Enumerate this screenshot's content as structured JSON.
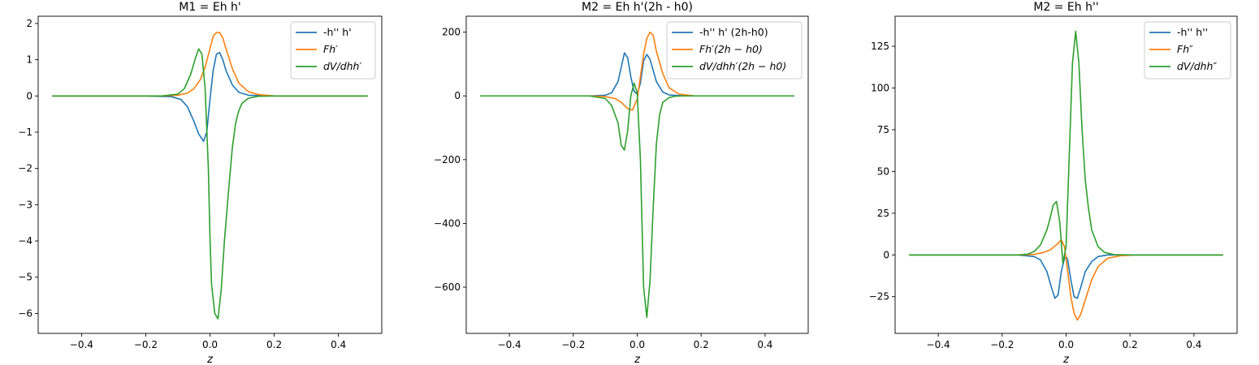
{
  "chart_data": [
    {
      "type": "line",
      "title": "M1 = Eh h'",
      "xlabel": "z",
      "ylabel": "",
      "xlim": [
        -0.535,
        0.535
      ],
      "ylim": [
        -6.55,
        2.2
      ],
      "xticks": [
        -0.4,
        -0.2,
        0.0,
        0.2,
        0.4
      ],
      "xtick_labels": [
        "−0.4",
        "−0.2",
        "0.0",
        "0.2",
        "0.4"
      ],
      "yticks": [
        2,
        1,
        0,
        -1,
        -2,
        -3,
        -4,
        -5,
        -6
      ],
      "ytick_labels": [
        "2",
        "1",
        "0",
        "−1",
        "−2",
        "−3",
        "−4",
        "−5",
        "−6"
      ],
      "legend_position": "upper right",
      "series": [
        {
          "name": "-h'' h'",
          "color": "#1f77b4",
          "x": [
            -0.49,
            -0.2,
            -0.12,
            -0.09,
            -0.07,
            -0.05,
            -0.035,
            -0.02,
            -0.01,
            0.0,
            0.01,
            0.02,
            0.03,
            0.04,
            0.05,
            0.07,
            0.09,
            0.12,
            0.2,
            0.49
          ],
          "y": [
            0,
            0,
            -0.02,
            -0.1,
            -0.3,
            -0.7,
            -1.05,
            -1.25,
            -1.0,
            -0.1,
            0.7,
            1.15,
            1.2,
            1.0,
            0.7,
            0.3,
            0.1,
            0.02,
            0,
            0
          ]
        },
        {
          "name": "Fh′",
          "color": "#ff7f0e",
          "x": [
            -0.49,
            -0.15,
            -0.1,
            -0.07,
            -0.05,
            -0.03,
            -0.015,
            0.0,
            0.01,
            0.02,
            0.03,
            0.04,
            0.05,
            0.07,
            0.09,
            0.12,
            0.15,
            0.2,
            0.49
          ],
          "y": [
            0,
            0,
            0.02,
            0.08,
            0.2,
            0.45,
            0.8,
            1.3,
            1.65,
            1.75,
            1.75,
            1.6,
            1.3,
            0.75,
            0.35,
            0.12,
            0.04,
            0,
            0
          ]
        },
        {
          "name": "dV/dhh′",
          "color": "#2ca02c",
          "x": [
            -0.49,
            -0.15,
            -0.1,
            -0.08,
            -0.06,
            -0.045,
            -0.035,
            -0.025,
            -0.015,
            -0.005,
            0.0,
            0.005,
            0.015,
            0.025,
            0.035,
            0.045,
            0.06,
            0.07,
            0.08,
            0.09,
            0.1,
            0.12,
            0.15,
            0.2,
            0.49
          ],
          "y": [
            0,
            0,
            0.05,
            0.2,
            0.6,
            1.05,
            1.3,
            1.15,
            0.2,
            -2.0,
            -3.9,
            -5.2,
            -6.0,
            -6.15,
            -5.35,
            -4.0,
            -2.4,
            -1.4,
            -0.75,
            -0.4,
            -0.2,
            -0.06,
            -0.01,
            0,
            0
          ]
        }
      ]
    },
    {
      "type": "line",
      "title": "M2 = Eh h'(2h - h0)",
      "xlabel": "z",
      "ylabel": "",
      "xlim": [
        -0.535,
        0.535
      ],
      "ylim": [
        -745,
        250
      ],
      "xticks": [
        -0.4,
        -0.2,
        0.0,
        0.2,
        0.4
      ],
      "xtick_labels": [
        "−0.4",
        "−0.2",
        "0.0",
        "0.2",
        "0.4"
      ],
      "yticks": [
        200,
        0,
        -200,
        -400,
        -600
      ],
      "ytick_labels": [
        "200",
        "0",
        "−200",
        "−400",
        "−600"
      ],
      "legend_position": "upper right",
      "series": [
        {
          "name": "-h'' h' (2h-h0)",
          "color": "#1f77b4",
          "x": [
            -0.49,
            -0.15,
            -0.1,
            -0.08,
            -0.06,
            -0.05,
            -0.04,
            -0.03,
            -0.02,
            -0.01,
            0.0,
            0.01,
            0.02,
            0.03,
            0.04,
            0.05,
            0.06,
            0.08,
            0.1,
            0.15,
            0.49
          ],
          "y": [
            0,
            0,
            2,
            10,
            45,
            90,
            135,
            120,
            60,
            15,
            5,
            40,
            110,
            130,
            115,
            80,
            45,
            12,
            3,
            0,
            0
          ]
        },
        {
          "name": "Fh′(2h − h0)",
          "color": "#ff7f0e",
          "x": [
            -0.49,
            -0.15,
            -0.1,
            -0.07,
            -0.05,
            -0.03,
            -0.015,
            0.0,
            0.01,
            0.02,
            0.03,
            0.04,
            0.05,
            0.06,
            0.08,
            0.1,
            0.13,
            0.18,
            0.49
          ],
          "y": [
            0,
            0,
            -2,
            -8,
            -20,
            -40,
            -45,
            -10,
            60,
            130,
            180,
            200,
            190,
            140,
            70,
            25,
            6,
            0,
            0
          ]
        },
        {
          "name": "dV/dhh′(2h − h0)",
          "color": "#2ca02c",
          "x": [
            -0.49,
            -0.15,
            -0.1,
            -0.08,
            -0.06,
            -0.05,
            -0.04,
            -0.03,
            -0.02,
            -0.01,
            0.0,
            0.01,
            0.02,
            0.03,
            0.04,
            0.05,
            0.06,
            0.07,
            0.08,
            0.1,
            0.12,
            0.15,
            0.2,
            0.49
          ],
          "y": [
            0,
            0,
            -8,
            -30,
            -85,
            -155,
            -170,
            -110,
            0,
            40,
            10,
            -200,
            -600,
            -695,
            -580,
            -350,
            -150,
            -60,
            -20,
            -5,
            -1,
            0,
            0,
            0
          ]
        }
      ]
    },
    {
      "type": "line",
      "title": "M2 = Eh h''",
      "xlabel": "z",
      "ylabel": "",
      "xlim": [
        -0.535,
        0.535
      ],
      "ylim": [
        -47,
        143
      ],
      "xticks": [
        -0.4,
        -0.2,
        0.0,
        0.2,
        0.4
      ],
      "xtick_labels": [
        "−0.4",
        "−0.2",
        "0.0",
        "0.2",
        "0.4"
      ],
      "yticks": [
        125,
        100,
        75,
        50,
        25,
        0,
        -25
      ],
      "ytick_labels": [
        "125",
        "100",
        "75",
        "50",
        "25",
        "0",
        "−25"
      ],
      "legend_position": "upper right",
      "series": [
        {
          "name": "-h'' h''",
          "color": "#1f77b4",
          "x": [
            -0.49,
            -0.15,
            -0.1,
            -0.08,
            -0.06,
            -0.045,
            -0.035,
            -0.025,
            -0.015,
            -0.005,
            0.0,
            0.005,
            0.015,
            0.025,
            0.035,
            0.045,
            0.06,
            0.08,
            0.1,
            0.13,
            0.18,
            0.49
          ],
          "y": [
            0,
            0,
            -1,
            -3,
            -10,
            -20,
            -26,
            -24,
            -10,
            -2,
            -1,
            -3,
            -15,
            -25,
            -26,
            -20,
            -10,
            -4,
            -1,
            0,
            0,
            0
          ]
        },
        {
          "name": "Fh″",
          "color": "#ff7f0e",
          "x": [
            -0.49,
            -0.15,
            -0.1,
            -0.07,
            -0.05,
            -0.03,
            -0.015,
            -0.005,
            0.005,
            0.015,
            0.025,
            0.035,
            0.045,
            0.06,
            0.08,
            0.1,
            0.13,
            0.17,
            0.22,
            0.49
          ],
          "y": [
            0,
            0,
            0.3,
            1.5,
            3,
            6,
            9,
            5,
            -10,
            -25,
            -35,
            -39,
            -36,
            -27,
            -15,
            -7,
            -2,
            -0.5,
            0,
            0
          ]
        },
        {
          "name": "dV/dhh″",
          "color": "#2ca02c",
          "x": [
            -0.49,
            -0.15,
            -0.12,
            -0.1,
            -0.08,
            -0.06,
            -0.05,
            -0.04,
            -0.03,
            -0.02,
            -0.01,
            0.0,
            0.01,
            0.02,
            0.03,
            0.04,
            0.05,
            0.06,
            0.07,
            0.08,
            0.1,
            0.12,
            0.15,
            0.2,
            0.49
          ],
          "y": [
            0,
            0,
            0.5,
            2,
            6,
            15,
            22,
            30,
            32,
            20,
            -5,
            5,
            60,
            115,
            134,
            115,
            75,
            45,
            28,
            15,
            5,
            1.5,
            0.2,
            0,
            0
          ]
        }
      ]
    }
  ]
}
